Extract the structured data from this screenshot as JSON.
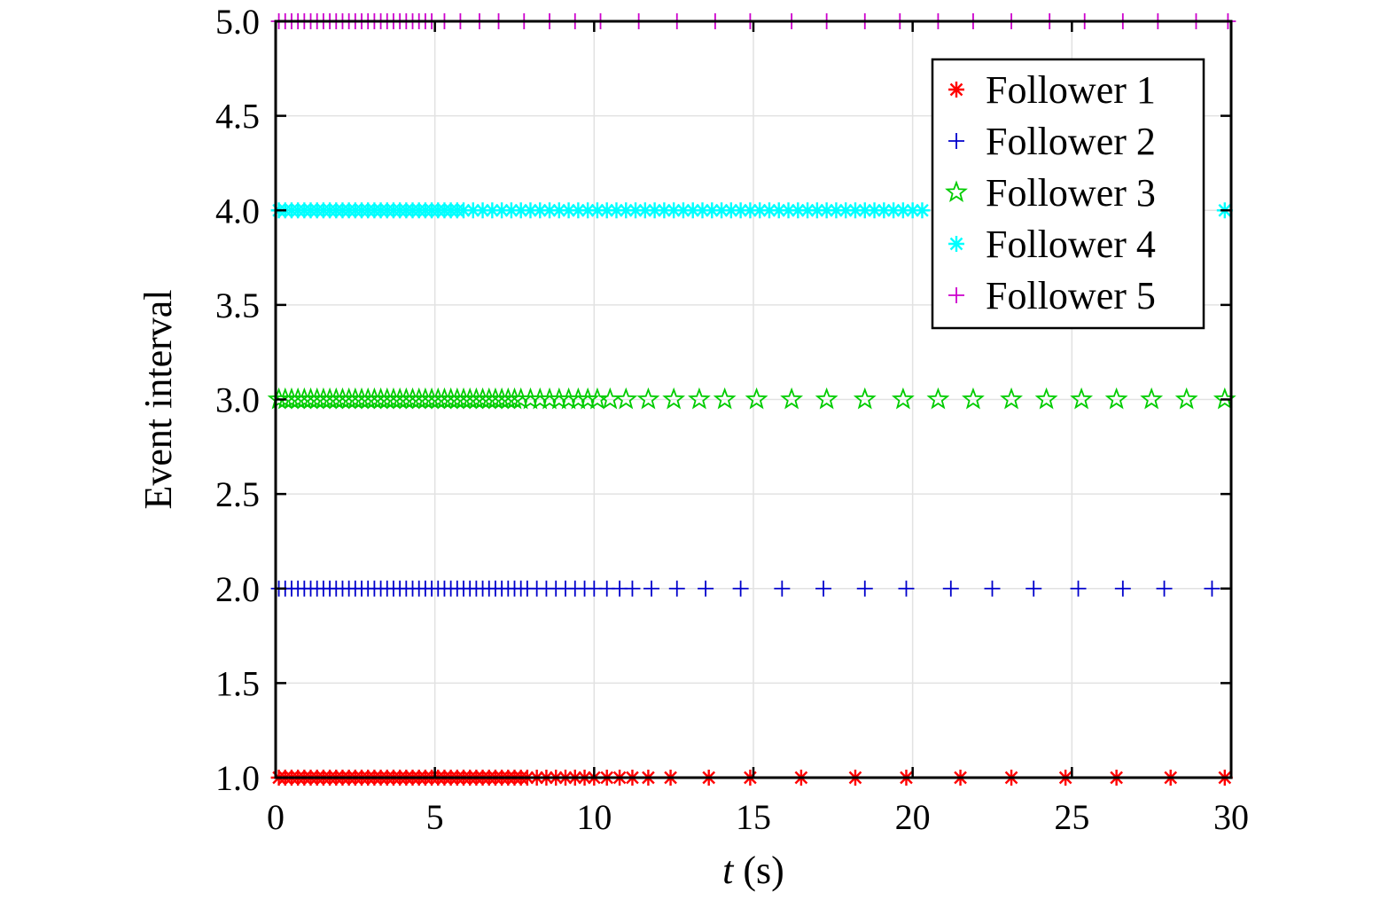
{
  "chart_data": {
    "type": "scatter",
    "title": "",
    "xlabel": {
      "var": "t",
      "unit": " (s)"
    },
    "ylabel": "Event interval",
    "xlim": [
      0,
      30
    ],
    "ylim": [
      1.0,
      5.0
    ],
    "x_ticks": [
      "0",
      "5",
      "10",
      "15",
      "20",
      "25",
      "30"
    ],
    "y_ticks": [
      "1.0",
      "1.5",
      "2.0",
      "2.5",
      "3.0",
      "3.5",
      "4.0",
      "4.5",
      "5.0"
    ],
    "grid": true,
    "legend_position": "top-right",
    "series": [
      {
        "name": "Follower 1",
        "y": 1.0,
        "marker": "asterisk",
        "color": "#ff0000",
        "x": [
          0.1,
          0.3,
          0.5,
          0.7,
          0.9,
          1.1,
          1.3,
          1.5,
          1.7,
          1.9,
          2.1,
          2.3,
          2.5,
          2.7,
          2.9,
          3.1,
          3.3,
          3.5,
          3.7,
          3.9,
          4.1,
          4.3,
          4.5,
          4.7,
          4.9,
          5.1,
          5.3,
          5.5,
          5.7,
          5.9,
          6.1,
          6.3,
          6.5,
          6.7,
          6.9,
          7.1,
          7.3,
          7.5,
          7.7,
          7.9,
          8.2,
          8.5,
          8.8,
          9.1,
          9.4,
          9.7,
          10.0,
          10.4,
          10.8,
          11.2,
          11.7,
          12.4,
          13.6,
          14.9,
          16.5,
          18.2,
          19.8,
          21.5,
          23.1,
          24.8,
          26.4,
          28.1,
          29.8
        ]
      },
      {
        "name": "Follower 2",
        "y": 2.0,
        "marker": "plus",
        "color": "#0000cc",
        "x": [
          0.1,
          0.3,
          0.5,
          0.7,
          0.9,
          1.1,
          1.3,
          1.5,
          1.7,
          1.9,
          2.1,
          2.3,
          2.5,
          2.7,
          2.9,
          3.1,
          3.3,
          3.5,
          3.7,
          3.9,
          4.1,
          4.3,
          4.5,
          4.7,
          4.9,
          5.1,
          5.3,
          5.5,
          5.7,
          5.9,
          6.1,
          6.3,
          6.5,
          6.7,
          6.9,
          7.1,
          7.3,
          7.5,
          7.7,
          7.9,
          8.2,
          8.5,
          8.8,
          9.1,
          9.4,
          9.7,
          10.0,
          10.4,
          10.8,
          11.2,
          11.8,
          12.6,
          13.5,
          14.6,
          15.9,
          17.2,
          18.5,
          19.8,
          21.2,
          22.5,
          23.8,
          25.2,
          26.6,
          27.9,
          29.4
        ]
      },
      {
        "name": "Follower 3",
        "y": 3.0,
        "marker": "star",
        "color": "#00cc00",
        "x": [
          0.1,
          0.3,
          0.5,
          0.7,
          0.9,
          1.1,
          1.3,
          1.5,
          1.7,
          1.9,
          2.1,
          2.3,
          2.5,
          2.7,
          2.9,
          3.1,
          3.3,
          3.5,
          3.7,
          3.9,
          4.1,
          4.3,
          4.5,
          4.7,
          4.9,
          5.1,
          5.3,
          5.5,
          5.7,
          5.9,
          6.1,
          6.3,
          6.5,
          6.7,
          6.9,
          7.1,
          7.3,
          7.5,
          7.7,
          8.0,
          8.3,
          8.6,
          8.9,
          9.2,
          9.5,
          9.8,
          10.1,
          10.5,
          11.0,
          11.7,
          12.5,
          13.3,
          14.1,
          15.1,
          16.2,
          17.3,
          18.5,
          19.7,
          20.8,
          21.9,
          23.1,
          24.2,
          25.3,
          26.4,
          27.5,
          28.6,
          29.8
        ]
      },
      {
        "name": "Follower 4",
        "y": 4.0,
        "marker": "asterisk",
        "color": "#00ffff",
        "x": [
          0.1,
          0.3,
          0.5,
          0.7,
          0.9,
          1.1,
          1.3,
          1.5,
          1.7,
          1.9,
          2.1,
          2.3,
          2.5,
          2.7,
          2.9,
          3.1,
          3.3,
          3.5,
          3.7,
          3.9,
          4.1,
          4.3,
          4.5,
          4.7,
          4.9,
          5.1,
          5.3,
          5.5,
          5.7,
          5.9,
          6.2,
          6.5,
          6.8,
          7.1,
          7.4,
          7.7,
          8.0,
          8.3,
          8.6,
          8.9,
          9.2,
          9.5,
          9.8,
          10.1,
          10.4,
          10.7,
          11.0,
          11.3,
          11.6,
          11.9,
          12.2,
          12.5,
          12.8,
          13.1,
          13.4,
          13.7,
          14.0,
          14.3,
          14.6,
          14.9,
          15.2,
          15.5,
          15.8,
          16.1,
          16.4,
          16.7,
          17.0,
          17.3,
          17.6,
          17.9,
          18.2,
          18.5,
          18.8,
          19.1,
          19.4,
          19.7,
          20.0,
          20.3,
          29.8
        ]
      },
      {
        "name": "Follower 5",
        "y": 5.0,
        "marker": "plus",
        "color": "#cc00cc",
        "x": [
          0.1,
          0.3,
          0.5,
          0.7,
          0.9,
          1.1,
          1.3,
          1.5,
          1.7,
          1.9,
          2.1,
          2.3,
          2.5,
          2.7,
          2.9,
          3.1,
          3.3,
          3.5,
          3.7,
          3.9,
          4.1,
          4.3,
          4.5,
          4.7,
          4.9,
          5.3,
          5.8,
          6.4,
          7.0,
          7.8,
          8.6,
          9.4,
          10.2,
          11.4,
          12.6,
          13.8,
          14.9,
          16.2,
          17.3,
          18.5,
          19.6,
          20.8,
          21.9,
          23.1,
          24.3,
          25.4,
          26.6,
          27.7,
          28.9,
          29.9
        ]
      }
    ]
  }
}
